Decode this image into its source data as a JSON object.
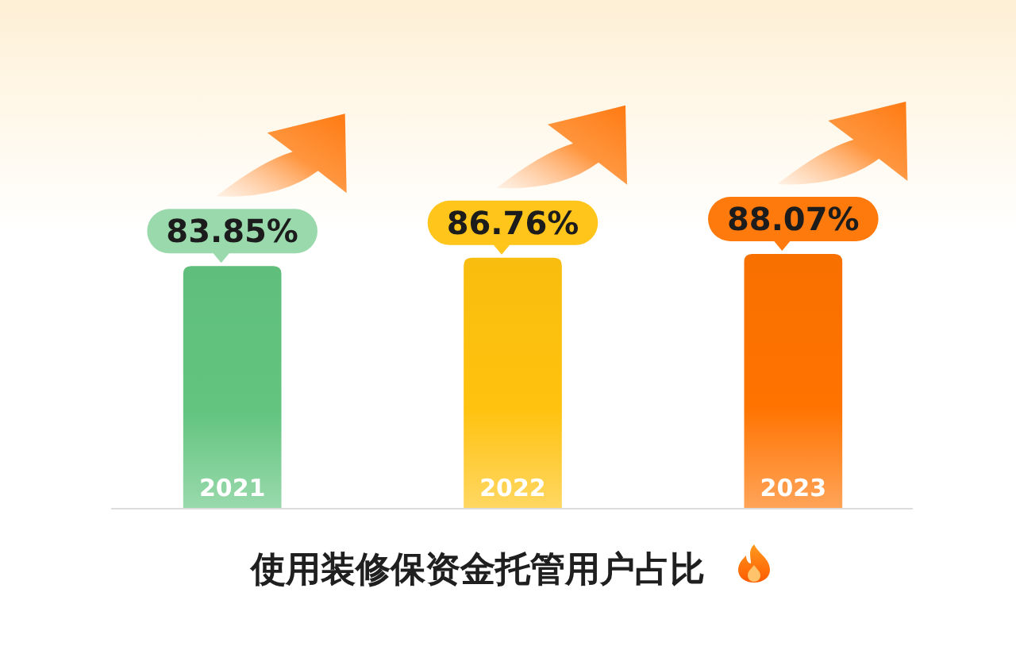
{
  "chart_data": {
    "type": "bar",
    "title": "使用装修保资金托管用户占比",
    "categories": [
      "2021",
      "2022",
      "2023"
    ],
    "values": [
      83.85,
      86.76,
      88.07
    ],
    "colors": [
      "#62c47f",
      "#ffc20e",
      "#ff7300"
    ],
    "value_labels": [
      "83.85%",
      "86.76%",
      "88.07%"
    ],
    "tick_labels": "x"
  }
}
